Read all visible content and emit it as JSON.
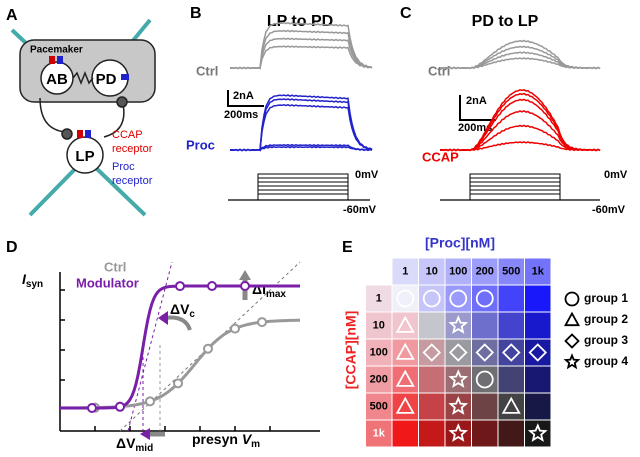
{
  "panel_a": {
    "label": "A",
    "pacemaker": "Pacemaker",
    "ab": "AB",
    "pd": "PD",
    "lp": "LP",
    "ccap_receptor": [
      "CCAP",
      "receptor"
    ],
    "proc_receptor": [
      "Proc",
      "receptor"
    ]
  },
  "panel_b": {
    "label": "B",
    "title": "LP to PD",
    "ctrl": "Ctrl",
    "scale_current": "2nA",
    "scale_time": "200ms",
    "modulator": "Proc",
    "step_top": "0mV",
    "step_bottom": "-60mV"
  },
  "panel_c": {
    "label": "C",
    "title": "PD to LP",
    "ctrl": "Ctrl",
    "scale_current": "2nA",
    "scale_time": "200ms",
    "modulator": "CCAP",
    "step_top": "0mV",
    "step_bottom": "-60mV"
  },
  "panel_d": {
    "label": "D",
    "y_label": {
      "main": "I",
      "sub": "syn"
    },
    "ctrl": "Ctrl",
    "modulator": "Modulator",
    "delta_vc": {
      "main": "ΔV",
      "sub": "c"
    },
    "delta_imax": {
      "main": "ΔI",
      "sub": "max"
    },
    "delta_vmid": {
      "main": "ΔV",
      "sub": "mid"
    },
    "x_label": {
      "main": "presyn ",
      "var": "V",
      "sub": "m"
    }
  },
  "panel_e": {
    "label": "E",
    "col_title": "[Proc][nM]",
    "row_title": "[CCAP][nM]",
    "columns": [
      "1",
      "10",
      "100",
      "200",
      "500",
      "1k"
    ],
    "rows": [
      "1",
      "10",
      "100",
      "200",
      "500",
      "1k"
    ],
    "groups": [
      [
        1,
        1,
        1,
        1,
        null,
        null
      ],
      [
        2,
        null,
        4,
        null,
        null,
        null
      ],
      [
        2,
        3,
        3,
        3,
        3,
        3
      ],
      [
        2,
        null,
        4,
        1,
        null,
        null
      ],
      [
        2,
        null,
        4,
        null,
        2,
        null
      ],
      [
        null,
        null,
        4,
        null,
        null,
        4
      ]
    ],
    "legend": [
      "group 1",
      "group 2",
      "group 3",
      "group 4"
    ]
  }
}
